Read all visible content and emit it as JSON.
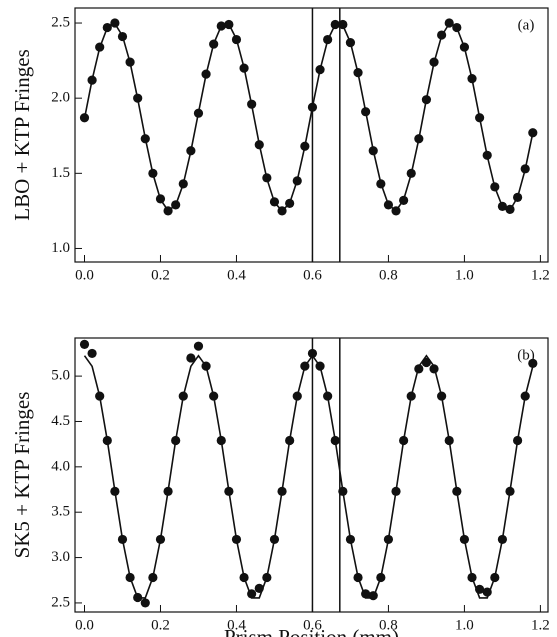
{
  "chart_data": [
    {
      "type": "scatter",
      "panel_label": "(a)",
      "ylabel": "LBO + KTP Fringes",
      "xlim": [
        -0.025,
        1.22
      ],
      "ylim": [
        0.91,
        2.6
      ],
      "xticks": [
        {
          "value": 0,
          "label": "0.0"
        },
        0.2,
        0.4,
        0.6,
        0.8,
        {
          "value": 1,
          "label": "1.0"
        },
        1.2
      ],
      "yticks": [
        {
          "value": 1,
          "label": "1.0"
        },
        1.5,
        {
          "value": 2,
          "label": "2.0"
        },
        2.5
      ],
      "vlines": [
        0.6,
        0.672
      ],
      "series": [
        {
          "kind": "points",
          "color": "#111111",
          "x": [
            0,
            0.02,
            0.04,
            0.06,
            0.08,
            0.1,
            0.12,
            0.14,
            0.16,
            0.18,
            0.2,
            0.22,
            0.24,
            0.26,
            0.28,
            0.3,
            0.32,
            0.34,
            0.36,
            0.38,
            0.4,
            0.42,
            0.44,
            0.46,
            0.48,
            0.5,
            0.52,
            0.54,
            0.56,
            0.58,
            0.6,
            0.62,
            0.64,
            0.66,
            0.68,
            0.7,
            0.72,
            0.74,
            0.76,
            0.78,
            0.8,
            0.82,
            0.84,
            0.86,
            0.88,
            0.9,
            0.92,
            0.94,
            0.96,
            0.98,
            1,
            1.02,
            1.04,
            1.06,
            1.08,
            1.1,
            1.12,
            1.14,
            1.16,
            1.18
          ],
          "values": [
            1.87,
            2.12,
            2.34,
            2.47,
            2.5,
            2.41,
            2.24,
            2,
            1.73,
            1.5,
            1.33,
            1.25,
            1.29,
            1.43,
            1.65,
            1.9,
            2.16,
            2.36,
            2.48,
            2.49,
            2.39,
            2.2,
            1.96,
            1.69,
            1.47,
            1.31,
            1.25,
            1.3,
            1.45,
            1.68,
            1.94,
            2.19,
            2.39,
            2.49,
            2.49,
            2.37,
            2.17,
            1.91,
            1.65,
            1.43,
            1.29,
            1.25,
            1.32,
            1.5,
            1.73,
            1.99,
            2.24,
            2.42,
            2.5,
            2.47,
            2.34,
            2.13,
            1.87,
            1.62,
            1.41,
            1.28,
            1.26,
            1.34,
            1.53,
            1.77
          ]
        },
        {
          "kind": "line",
          "color": "#111111",
          "x": [
            0,
            0.02,
            0.04,
            0.06,
            0.08,
            0.1,
            0.12,
            0.14,
            0.16,
            0.18,
            0.2,
            0.22,
            0.24,
            0.26,
            0.28,
            0.3,
            0.32,
            0.34,
            0.36,
            0.38,
            0.4,
            0.42,
            0.44,
            0.46,
            0.48,
            0.5,
            0.52,
            0.54,
            0.56,
            0.58,
            0.6,
            0.62,
            0.64,
            0.66,
            0.68,
            0.7,
            0.72,
            0.74,
            0.76,
            0.78,
            0.8,
            0.82,
            0.84,
            0.86,
            0.88,
            0.9,
            0.92,
            0.94,
            0.96,
            0.98,
            1,
            1.02,
            1.04,
            1.06,
            1.08,
            1.1,
            1.12,
            1.14,
            1.16,
            1.18
          ],
          "values": [
            1.865,
            2.122,
            2.336,
            2.469,
            2.496,
            2.414,
            2.237,
            1.996,
            1.734,
            1.497,
            1.326,
            1.252,
            1.288,
            1.429,
            1.648,
            1.904,
            2.157,
            2.362,
            2.481,
            2.493,
            2.393,
            2.203,
            1.955,
            1.694,
            1.465,
            1.307,
            1.25,
            1.301,
            1.454,
            1.679,
            1.941,
            2.189,
            2.385,
            2.491,
            2.485,
            2.37,
            2.166,
            1.912,
            1.654,
            1.434,
            1.291,
            1.251,
            1.324,
            1.495,
            1.728,
            1.994,
            2.236,
            2.415,
            2.496,
            2.469,
            2.338,
            2.128,
            1.871,
            1.616,
            1.407,
            1.278,
            1.255,
            1.341,
            1.526,
            1.769
          ]
        }
      ]
    },
    {
      "type": "scatter",
      "panel_label": "(b)",
      "ylabel": "SK5 + KTP Fringes",
      "xlabel": "Prism Position (mm)",
      "xlim": [
        -0.025,
        1.22
      ],
      "ylim": [
        2.4,
        5.42
      ],
      "xticks": [
        {
          "value": 0,
          "label": "0.0"
        },
        0.2,
        0.4,
        0.6,
        0.8,
        {
          "value": 1,
          "label": "1.0"
        },
        1.2
      ],
      "yticks": [
        2.5,
        {
          "value": 3,
          "label": "3.0"
        },
        3.5,
        {
          "value": 4,
          "label": "4.0"
        },
        4.5,
        {
          "value": 5,
          "label": "5.0"
        }
      ],
      "vlines": [
        0.6,
        0.672
      ],
      "series": [
        {
          "kind": "points",
          "color": "#111111",
          "x": [
            0,
            0.02,
            0.04,
            0.06,
            0.08,
            0.1,
            0.12,
            0.14,
            0.16,
            0.18,
            0.2,
            0.22,
            0.24,
            0.26,
            0.28,
            0.3,
            0.32,
            0.34,
            0.36,
            0.38,
            0.4,
            0.42,
            0.44,
            0.46,
            0.48,
            0.5,
            0.52,
            0.54,
            0.56,
            0.58,
            0.6,
            0.62,
            0.64,
            0.66,
            0.68,
            0.7,
            0.72,
            0.74,
            0.76,
            0.78,
            0.8,
            0.82,
            0.84,
            0.86,
            0.88,
            0.9,
            0.92,
            0.94,
            0.96,
            0.98,
            1,
            1.02,
            1.04,
            1.06,
            1.08,
            1.1,
            1.12,
            1.14,
            1.16,
            1.18
          ],
          "values": [
            5.35,
            5.25,
            4.78,
            4.29,
            3.73,
            3.2,
            2.78,
            2.56,
            2.5,
            2.78,
            3.2,
            3.73,
            4.29,
            4.78,
            5.2,
            5.33,
            5.11,
            4.78,
            4.29,
            3.73,
            3.2,
            2.78,
            2.6,
            2.66,
            2.78,
            3.2,
            3.73,
            4.29,
            4.78,
            5.11,
            5.25,
            5.11,
            4.78,
            4.29,
            3.73,
            3.2,
            2.78,
            2.6,
            2.58,
            2.78,
            3.2,
            3.73,
            4.29,
            4.78,
            5.08,
            5.15,
            5.08,
            4.78,
            4.29,
            3.73,
            3.2,
            2.78,
            2.65,
            2.62,
            2.78,
            3.2,
            3.73,
            4.29,
            4.78,
            5.14
          ]
        },
        {
          "kind": "line",
          "color": "#111111",
          "x": [
            0,
            0.02,
            0.04,
            0.06,
            0.08,
            0.1,
            0.12,
            0.14,
            0.16,
            0.18,
            0.2,
            0.22,
            0.24,
            0.26,
            0.28,
            0.3,
            0.32,
            0.34,
            0.36,
            0.38,
            0.4,
            0.42,
            0.44,
            0.46,
            0.48,
            0.5,
            0.52,
            0.54,
            0.56,
            0.58,
            0.6,
            0.62,
            0.64,
            0.66,
            0.68,
            0.7,
            0.72,
            0.74,
            0.76,
            0.78,
            0.8,
            0.82,
            0.84,
            0.86,
            0.88,
            0.9,
            0.92,
            0.94,
            0.96,
            0.98,
            1,
            1.02,
            1.04,
            1.06,
            1.08,
            1.1,
            1.12,
            1.14,
            1.16,
            1.18
          ],
          "values": [
            5.225,
            5.108,
            4.778,
            4.292,
            3.734,
            3.2,
            2.783,
            2.555,
            2.555,
            2.783,
            3.2,
            3.734,
            4.292,
            4.778,
            5.108,
            5.225,
            5.108,
            4.778,
            4.292,
            3.734,
            3.2,
            2.783,
            2.555,
            2.555,
            2.783,
            3.2,
            3.734,
            4.292,
            4.778,
            5.108,
            5.225,
            5.108,
            4.778,
            4.292,
            3.734,
            3.2,
            2.783,
            2.555,
            2.555,
            2.783,
            3.2,
            3.734,
            4.292,
            4.778,
            5.108,
            5.225,
            5.108,
            4.778,
            4.292,
            3.734,
            3.2,
            2.783,
            2.555,
            2.555,
            2.783,
            3.2,
            3.734,
            4.292,
            4.778,
            5.108
          ]
        }
      ]
    }
  ]
}
